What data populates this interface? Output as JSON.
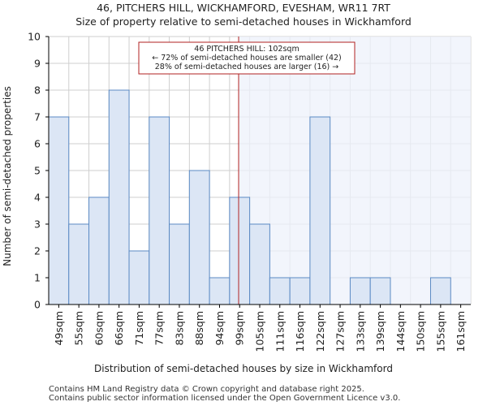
{
  "titles": {
    "line1": "46, PITCHERS HILL, WICKHAMFORD, EVESHAM, WR11 7RT",
    "line2": "Size of property relative to semi-detached houses in Wickhamford"
  },
  "footer": {
    "line1": "Contains HM Land Registry data © Crown copyright and database right 2025.",
    "line2": "Contains public sector information licensed under the Open Government Licence v3.0."
  },
  "annotation": {
    "line1": "46 PITCHERS HILL: 102sqm",
    "line2": "← 72% of semi-detached houses are smaller (42)",
    "line3": "28% of semi-detached houses are larger (16) →"
  },
  "colors": {
    "bar_fill": "#dce6f5",
    "bar_stroke": "#5b8ac4",
    "shade": "#eef2fb",
    "marker": "#b22222",
    "grid": "#cfcfcf"
  },
  "chart_data": {
    "type": "bar",
    "title": "46, PITCHERS HILL, WICKHAMFORD, EVESHAM, WR11 7RT",
    "subtitle": "Size of property relative to semi-detached houses in Wickhamford",
    "xlabel": "Distribution of semi-detached houses by size in Wickhamford",
    "ylabel": "Number of semi-detached properties",
    "categories": [
      "49sqm",
      "55sqm",
      "60sqm",
      "66sqm",
      "71sqm",
      "77sqm",
      "83sqm",
      "88sqm",
      "94sqm",
      "99sqm",
      "105sqm",
      "111sqm",
      "116sqm",
      "122sqm",
      "127sqm",
      "133sqm",
      "139sqm",
      "144sqm",
      "150sqm",
      "155sqm",
      "161sqm"
    ],
    "values": [
      7,
      3,
      4,
      8,
      2,
      7,
      3,
      5,
      1,
      4,
      3,
      1,
      1,
      7,
      0,
      1,
      1,
      0,
      0,
      1,
      0
    ],
    "ylim": [
      0,
      10
    ],
    "yticks": [
      0,
      1,
      2,
      3,
      4,
      5,
      6,
      7,
      8,
      9,
      10
    ],
    "grid": true,
    "property_size_index": 9.45,
    "shaded_from_index": 9.45
  }
}
